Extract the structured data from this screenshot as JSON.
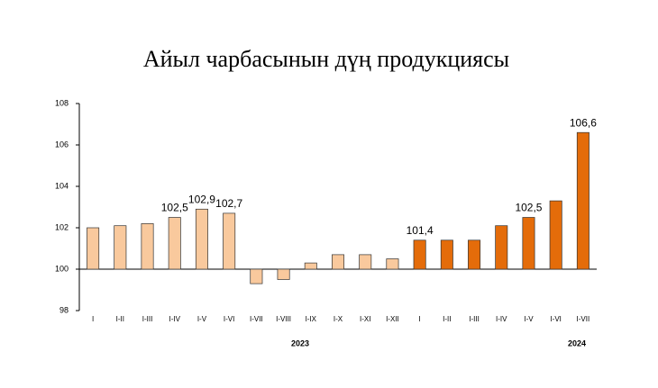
{
  "chart_data": {
    "type": "bar",
    "title": "Айыл чарбасынын дүң продукциясы",
    "categories": [
      "I",
      "I-II",
      "I-III",
      "I-IV",
      "I-V",
      "I-VI",
      "I-VII",
      "I-VIII",
      "I-IX",
      "I-X",
      "I-XI",
      "I-XII",
      "I",
      "I-II",
      "I-III",
      "I-IV",
      "I-V",
      "I-VI",
      "I-VII"
    ],
    "series": [
      {
        "name": "2023",
        "color": "#f9c99d",
        "values": [
          102.0,
          102.1,
          102.2,
          102.5,
          102.9,
          102.7,
          99.3,
          99.5,
          100.3,
          100.7,
          100.7,
          100.5,
          null,
          null,
          null,
          null,
          null,
          null,
          null
        ],
        "value_labels": [
          null,
          null,
          null,
          "102,5",
          "102,9",
          "102,7",
          null,
          null,
          null,
          null,
          null,
          null,
          null,
          null,
          null,
          null,
          null,
          null,
          null
        ]
      },
      {
        "name": "2024",
        "color": "#e46c0a",
        "values": [
          null,
          null,
          null,
          null,
          null,
          null,
          null,
          null,
          null,
          null,
          null,
          null,
          101.4,
          101.4,
          101.4,
          102.1,
          102.5,
          103.3,
          106.6
        ],
        "value_labels": [
          null,
          null,
          null,
          null,
          null,
          null,
          null,
          null,
          null,
          null,
          null,
          null,
          "101,4",
          null,
          null,
          null,
          "102,5",
          null,
          "106,6"
        ]
      }
    ],
    "ylim": [
      98,
      108
    ],
    "yticks": [
      98,
      100,
      102,
      104,
      106,
      108
    ]
  }
}
